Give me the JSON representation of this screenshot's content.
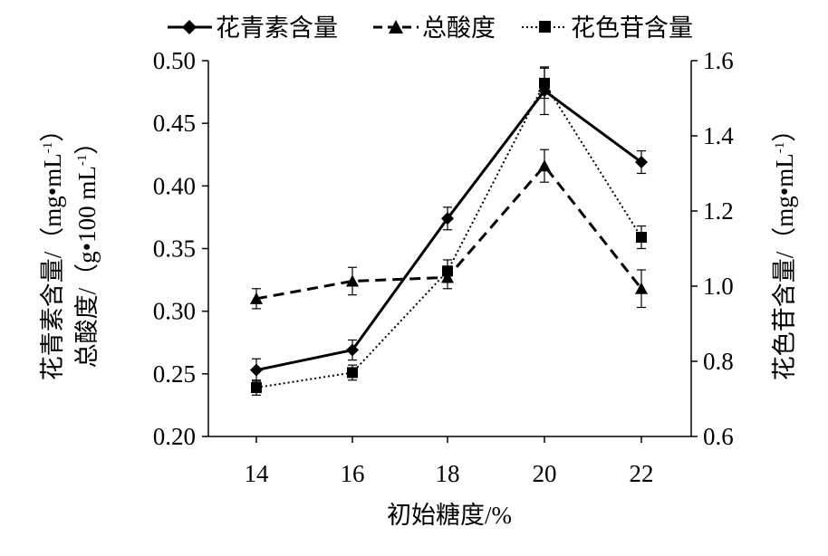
{
  "chart_data": {
    "type": "line",
    "x": [
      14,
      16,
      18,
      20,
      22
    ],
    "xlabel": "初始糖度/%",
    "left_axis": {
      "label_line1_main": "花青素含量/（mg•mL",
      "label_line1_sup": "-1",
      "label_line1_end": "）",
      "label_line2_main": "总酸度/（g•100 mL",
      "label_line2_sup": "-1",
      "label_line2_end": "）",
      "ylim": [
        0.2,
        0.5
      ],
      "ticks": [
        "0.20",
        "0.25",
        "0.30",
        "0.35",
        "0.40",
        "0.45",
        "0.50"
      ]
    },
    "right_axis": {
      "label_main": "花色苷含量/（mg•mL",
      "label_sup": "-1",
      "label_end": "）",
      "ylim": [
        0.6,
        1.6
      ],
      "ticks": [
        "0.6",
        "0.8",
        "1.0",
        "1.2",
        "1.4",
        "1.6"
      ]
    },
    "x_ticks": [
      "14",
      "16",
      "18",
      "20",
      "22"
    ],
    "grid": false,
    "legend_position": "top",
    "series": [
      {
        "name": "花青素含量",
        "axis": "left",
        "style": "solid",
        "marker": "diamond",
        "values": [
          0.253,
          0.269,
          0.374,
          0.476,
          0.419
        ],
        "errors": [
          0.009,
          0.008,
          0.009,
          0.019,
          0.009
        ]
      },
      {
        "name": "总酸度",
        "axis": "left",
        "style": "dashed",
        "marker": "triangle",
        "values": [
          0.31,
          0.324,
          0.327,
          0.416,
          0.318
        ],
        "errors": [
          0.008,
          0.011,
          0.009,
          0.013,
          0.015
        ]
      },
      {
        "name": "花色苷含量",
        "axis": "right",
        "style": "dotted",
        "marker": "square",
        "values": [
          0.73,
          0.77,
          1.04,
          1.54,
          1.13
        ],
        "errors": [
          0.02,
          0.02,
          0.03,
          0.04,
          0.03
        ]
      }
    ]
  }
}
